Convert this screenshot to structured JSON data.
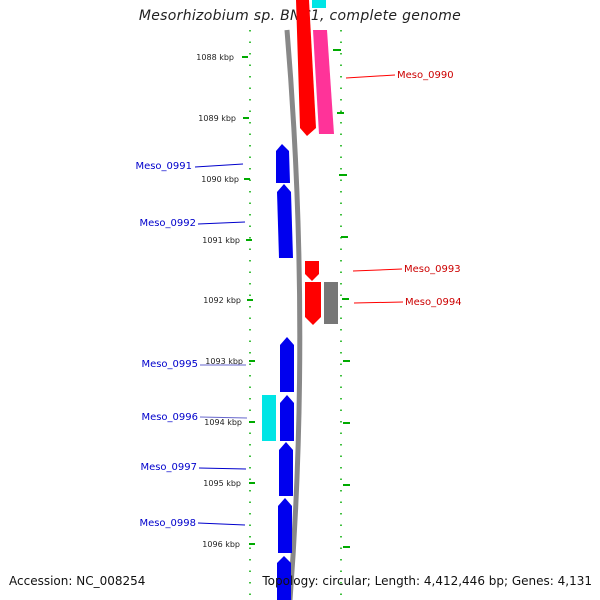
{
  "title": "Mesorhizobium sp. BNC1, complete genome",
  "accession": "Accession: NC_008254",
  "summary": "Topology: circular; Length: 4,412,446 bp; Genes: 4,131",
  "colors": {
    "forward": "#ff0000",
    "reverse": "#0000ee",
    "pink": "#ff3399",
    "cyan": "#00e5e5",
    "gray": "#777777",
    "ticks": "#00aa00",
    "backbone": "#888888"
  },
  "ruler": [
    {
      "label": "1088 kbp"
    },
    {
      "label": "1089 kbp"
    },
    {
      "label": "1090 kbp"
    },
    {
      "label": "1091 kbp"
    },
    {
      "label": "1092 kbp"
    },
    {
      "label": "1093 kbp"
    },
    {
      "label": "1094 kbp"
    },
    {
      "label": "1095 kbp"
    },
    {
      "label": "1096 kbp"
    }
  ],
  "genes": [
    {
      "name": "Meso_0990",
      "strand": "+"
    },
    {
      "name": "Meso_0991",
      "strand": "-"
    },
    {
      "name": "Meso_0992",
      "strand": "-"
    },
    {
      "name": "Meso_0993",
      "strand": "+"
    },
    {
      "name": "Meso_0994",
      "strand": "+"
    },
    {
      "name": "Meso_0995",
      "strand": "-"
    },
    {
      "name": "Meso_0996",
      "strand": "-"
    },
    {
      "name": "Meso_0997",
      "strand": "-"
    },
    {
      "name": "Meso_0998",
      "strand": "-"
    }
  ]
}
